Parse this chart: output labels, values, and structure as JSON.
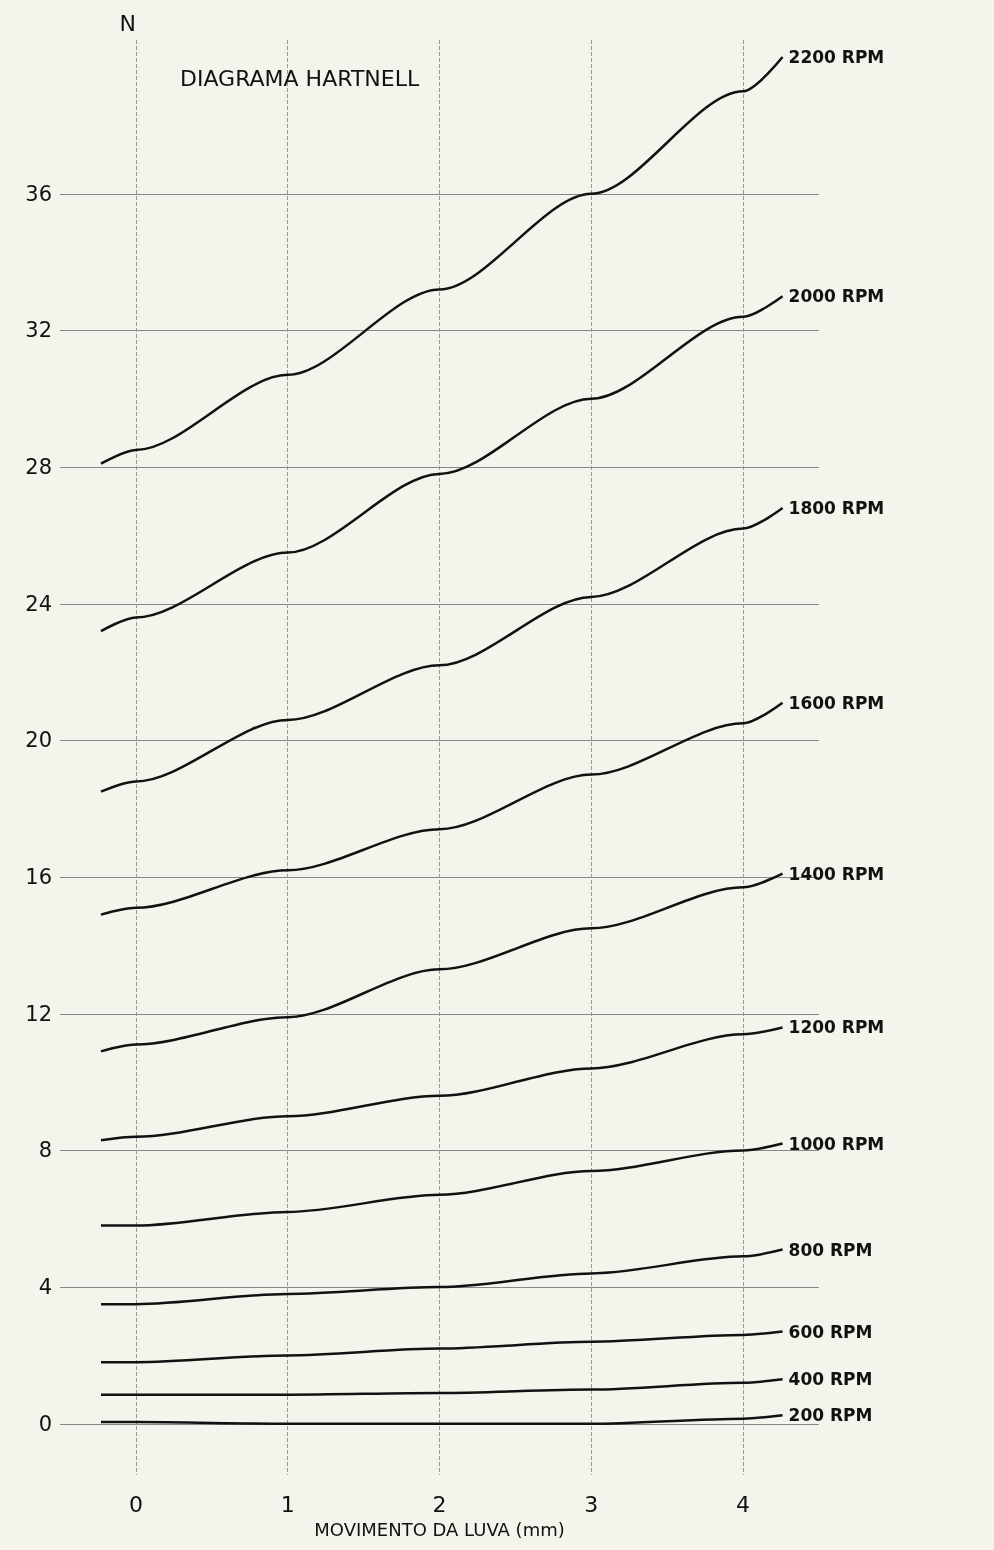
{
  "chart_data": {
    "type": "line",
    "title": "DIAGRAMA HARTNELL",
    "xlabel": "MOVIMENTO DA LUVA (mm)",
    "ylabel": "N",
    "x": [
      -0.23,
      0,
      1,
      2,
      3,
      4,
      4.26
    ],
    "series": [
      {
        "name": "2200 RPM",
        "color": "#111111",
        "values": [
          28.1,
          28.5,
          30.7,
          33.2,
          36.0,
          39.0,
          40.0
        ]
      },
      {
        "name": "2000 RPM",
        "color": "#111111",
        "values": [
          23.2,
          23.6,
          25.5,
          27.8,
          30.0,
          32.4,
          33.0
        ]
      },
      {
        "name": "1800 RPM",
        "color": "#111111",
        "values": [
          18.5,
          18.8,
          20.6,
          22.2,
          24.2,
          26.2,
          26.8
        ]
      },
      {
        "name": "1600 RPM",
        "color": "#111111",
        "values": [
          14.9,
          15.1,
          16.2,
          17.4,
          19.0,
          20.5,
          21.1
        ]
      },
      {
        "name": "1400 RPM",
        "color": "#111111",
        "values": [
          10.9,
          11.1,
          11.9,
          13.3,
          14.5,
          15.7,
          16.1
        ]
      },
      {
        "name": "1200 RPM",
        "color": "#111111",
        "values": [
          8.3,
          8.4,
          9.0,
          9.6,
          10.4,
          11.4,
          11.6
        ]
      },
      {
        "name": "1000 RPM",
        "color": "#111111",
        "values": [
          5.8,
          5.8,
          6.2,
          6.7,
          7.4,
          8.0,
          8.2
        ]
      },
      {
        "name": "800 RPM",
        "color": "#111111",
        "values": [
          3.5,
          3.5,
          3.8,
          4.0,
          4.4,
          4.9,
          5.1
        ]
      },
      {
        "name": "600 RPM",
        "color": "#111111",
        "values": [
          1.8,
          1.8,
          2.0,
          2.2,
          2.4,
          2.6,
          2.7
        ]
      },
      {
        "name": "400 RPM",
        "color": "#111111",
        "values": [
          0.85,
          0.85,
          0.85,
          0.9,
          1.0,
          1.2,
          1.3
        ]
      },
      {
        "name": "200 RPM",
        "color": "#111111",
        "values": [
          0.05,
          0.05,
          0.0,
          0.0,
          0.0,
          0.15,
          0.25
        ]
      }
    ],
    "xlim": [
      -0.5,
      4.5
    ],
    "xticks": [
      0,
      1,
      2,
      3,
      4
    ],
    "ylim": [
      -1.5,
      40.5
    ],
    "yticks": [
      0,
      4,
      8,
      12,
      16,
      20,
      24,
      28,
      32,
      36
    ],
    "grid": true,
    "legend": false
  }
}
